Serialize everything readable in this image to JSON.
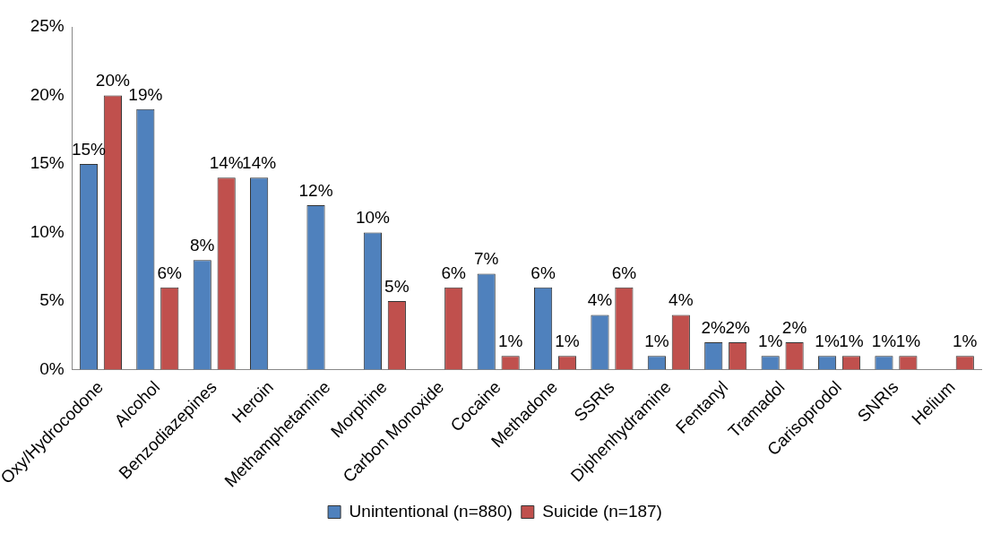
{
  "chart_data": {
    "type": "bar",
    "categories": [
      "Oxy/Hydrocodone",
      "Alcohol",
      "Benzodiazepines",
      "Heroin",
      "Methamphetamine",
      "Morphine",
      "Carbon Monoxide",
      "Cocaine",
      "Methadone",
      "SSRIs",
      "Diphenhydramine",
      "Fentanyl",
      "Tramadol",
      "Carisoprodol",
      "SNRIs",
      "Helium"
    ],
    "series": [
      {
        "name": "Unintentional (n=880)",
        "color": "#4f81bd",
        "values": [
          15,
          19,
          8,
          14,
          12,
          10,
          null,
          7,
          6,
          4,
          1,
          2,
          1,
          1,
          1,
          null
        ],
        "value_labels": [
          "15%",
          "19%",
          "8%",
          "14%",
          "12%",
          "10%",
          null,
          "7%",
          "6%",
          "4%",
          "1%",
          "2%",
          "1%",
          "1%",
          "1%",
          null
        ]
      },
      {
        "name": "Suicide (n=187)",
        "color": "#c0504d",
        "values": [
          20,
          6,
          14,
          null,
          null,
          5,
          6,
          1,
          1,
          6,
          4,
          2,
          2,
          1,
          1,
          1
        ],
        "value_labels": [
          "20%",
          "6%",
          "14%",
          null,
          null,
          "5%",
          "6%",
          "1%",
          "1%",
          "6%",
          "4%",
          "2%",
          "2%",
          "1%",
          "1%",
          "1%"
        ]
      }
    ],
    "ylim": [
      0,
      25
    ],
    "yticks": [
      {
        "value": 0,
        "label": "0%"
      },
      {
        "value": 5,
        "label": "5%"
      },
      {
        "value": 10,
        "label": "10%"
      },
      {
        "value": 15,
        "label": "15%"
      },
      {
        "value": 20,
        "label": "20%"
      },
      {
        "value": 25,
        "label": "25%"
      }
    ],
    "grid": false,
    "legend": "bottom"
  }
}
